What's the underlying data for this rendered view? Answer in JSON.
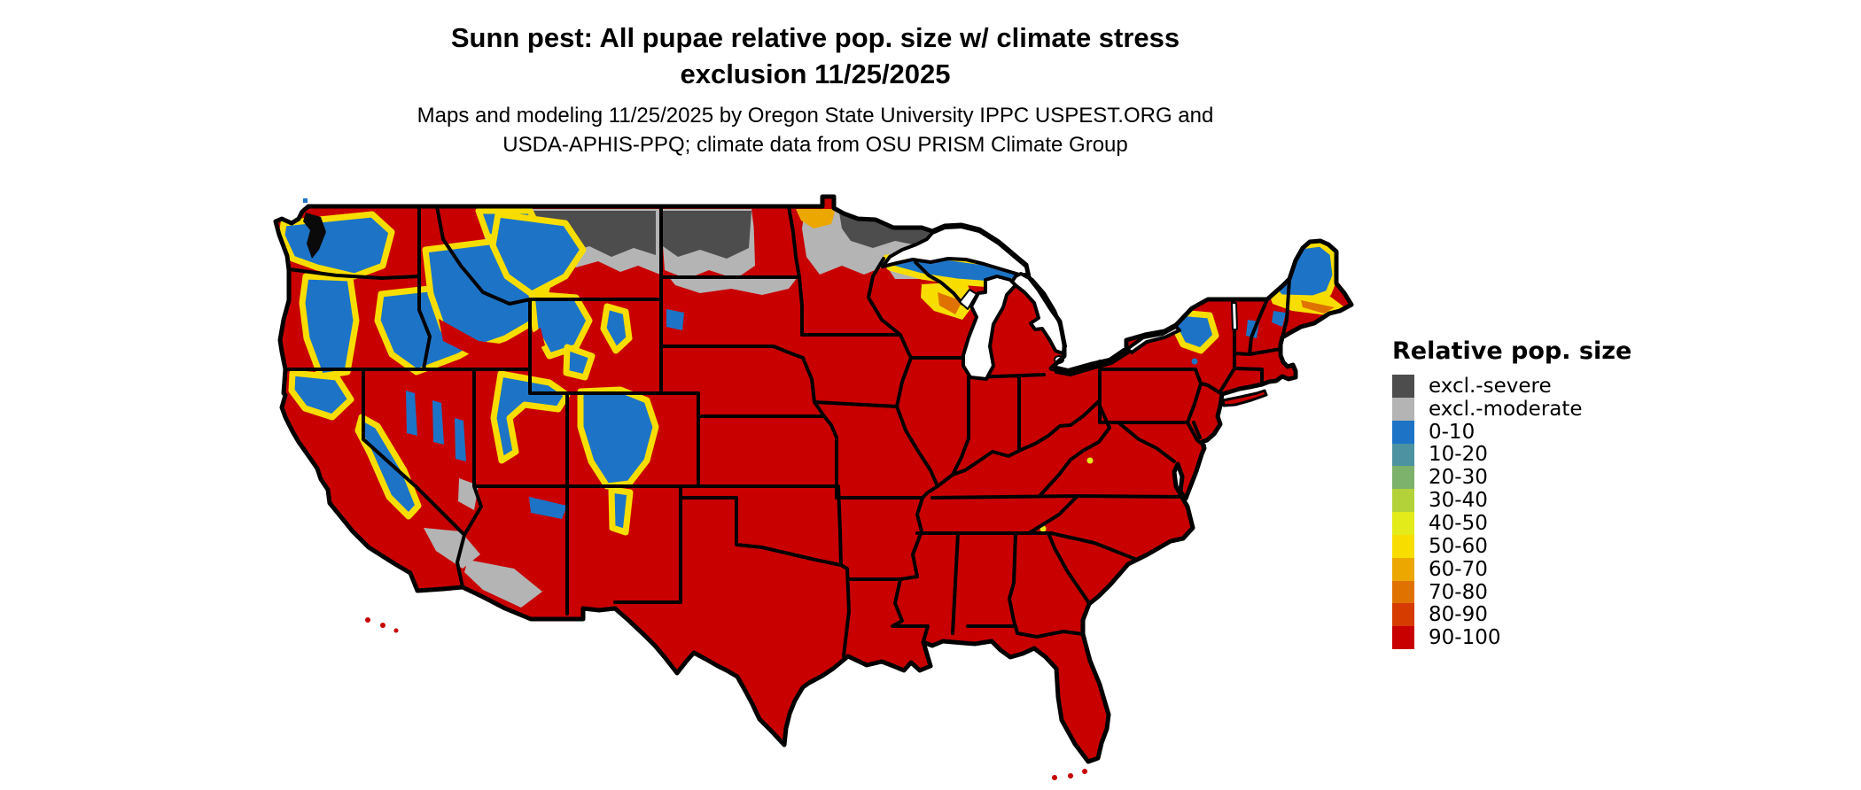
{
  "header": {
    "title_line1": "Sunn pest: All pupae relative pop. size w/ climate stress",
    "title_line2": "exclusion 11/25/2025",
    "subtitle_line1": "Maps and modeling 11/25/2025 by Oregon State University IPPC USPEST.ORG and",
    "subtitle_line2": "USDA-APHIS-PPQ; climate data from OSU PRISM Climate Group"
  },
  "map": {
    "region": "contiguous-united-states",
    "water_color": "#FFFFFF",
    "border_color": "#000000",
    "puget_sound_color": "#0A0A0A",
    "background_color": "#FFFFFF"
  },
  "legend": {
    "title": "Relative pop. size",
    "items": [
      {
        "key": "sev",
        "label": "excl.-severe",
        "color": "#4D4D4D"
      },
      {
        "key": "mod",
        "label": "excl.-moderate",
        "color": "#B4B4B4"
      },
      {
        "key": "b10",
        "label": "0-10",
        "color": "#1D74C6"
      },
      {
        "key": "t20",
        "label": "10-20",
        "color": "#4C92A0"
      },
      {
        "key": "g30",
        "label": "20-30",
        "color": "#7CB26B"
      },
      {
        "key": "g40",
        "label": "30-40",
        "color": "#B3D23A"
      },
      {
        "key": "y50",
        "label": "40-50",
        "color": "#E3EB1B"
      },
      {
        "key": "y60",
        "label": "50-60",
        "color": "#F8DE00"
      },
      {
        "key": "o70",
        "label": "60-70",
        "color": "#ECA800"
      },
      {
        "key": "o80",
        "label": "70-80",
        "color": "#E07300"
      },
      {
        "key": "r90",
        "label": "80-90",
        "color": "#D63B00"
      },
      {
        "key": "r100",
        "label": "90-100",
        "color": "#C80000"
      }
    ]
  }
}
